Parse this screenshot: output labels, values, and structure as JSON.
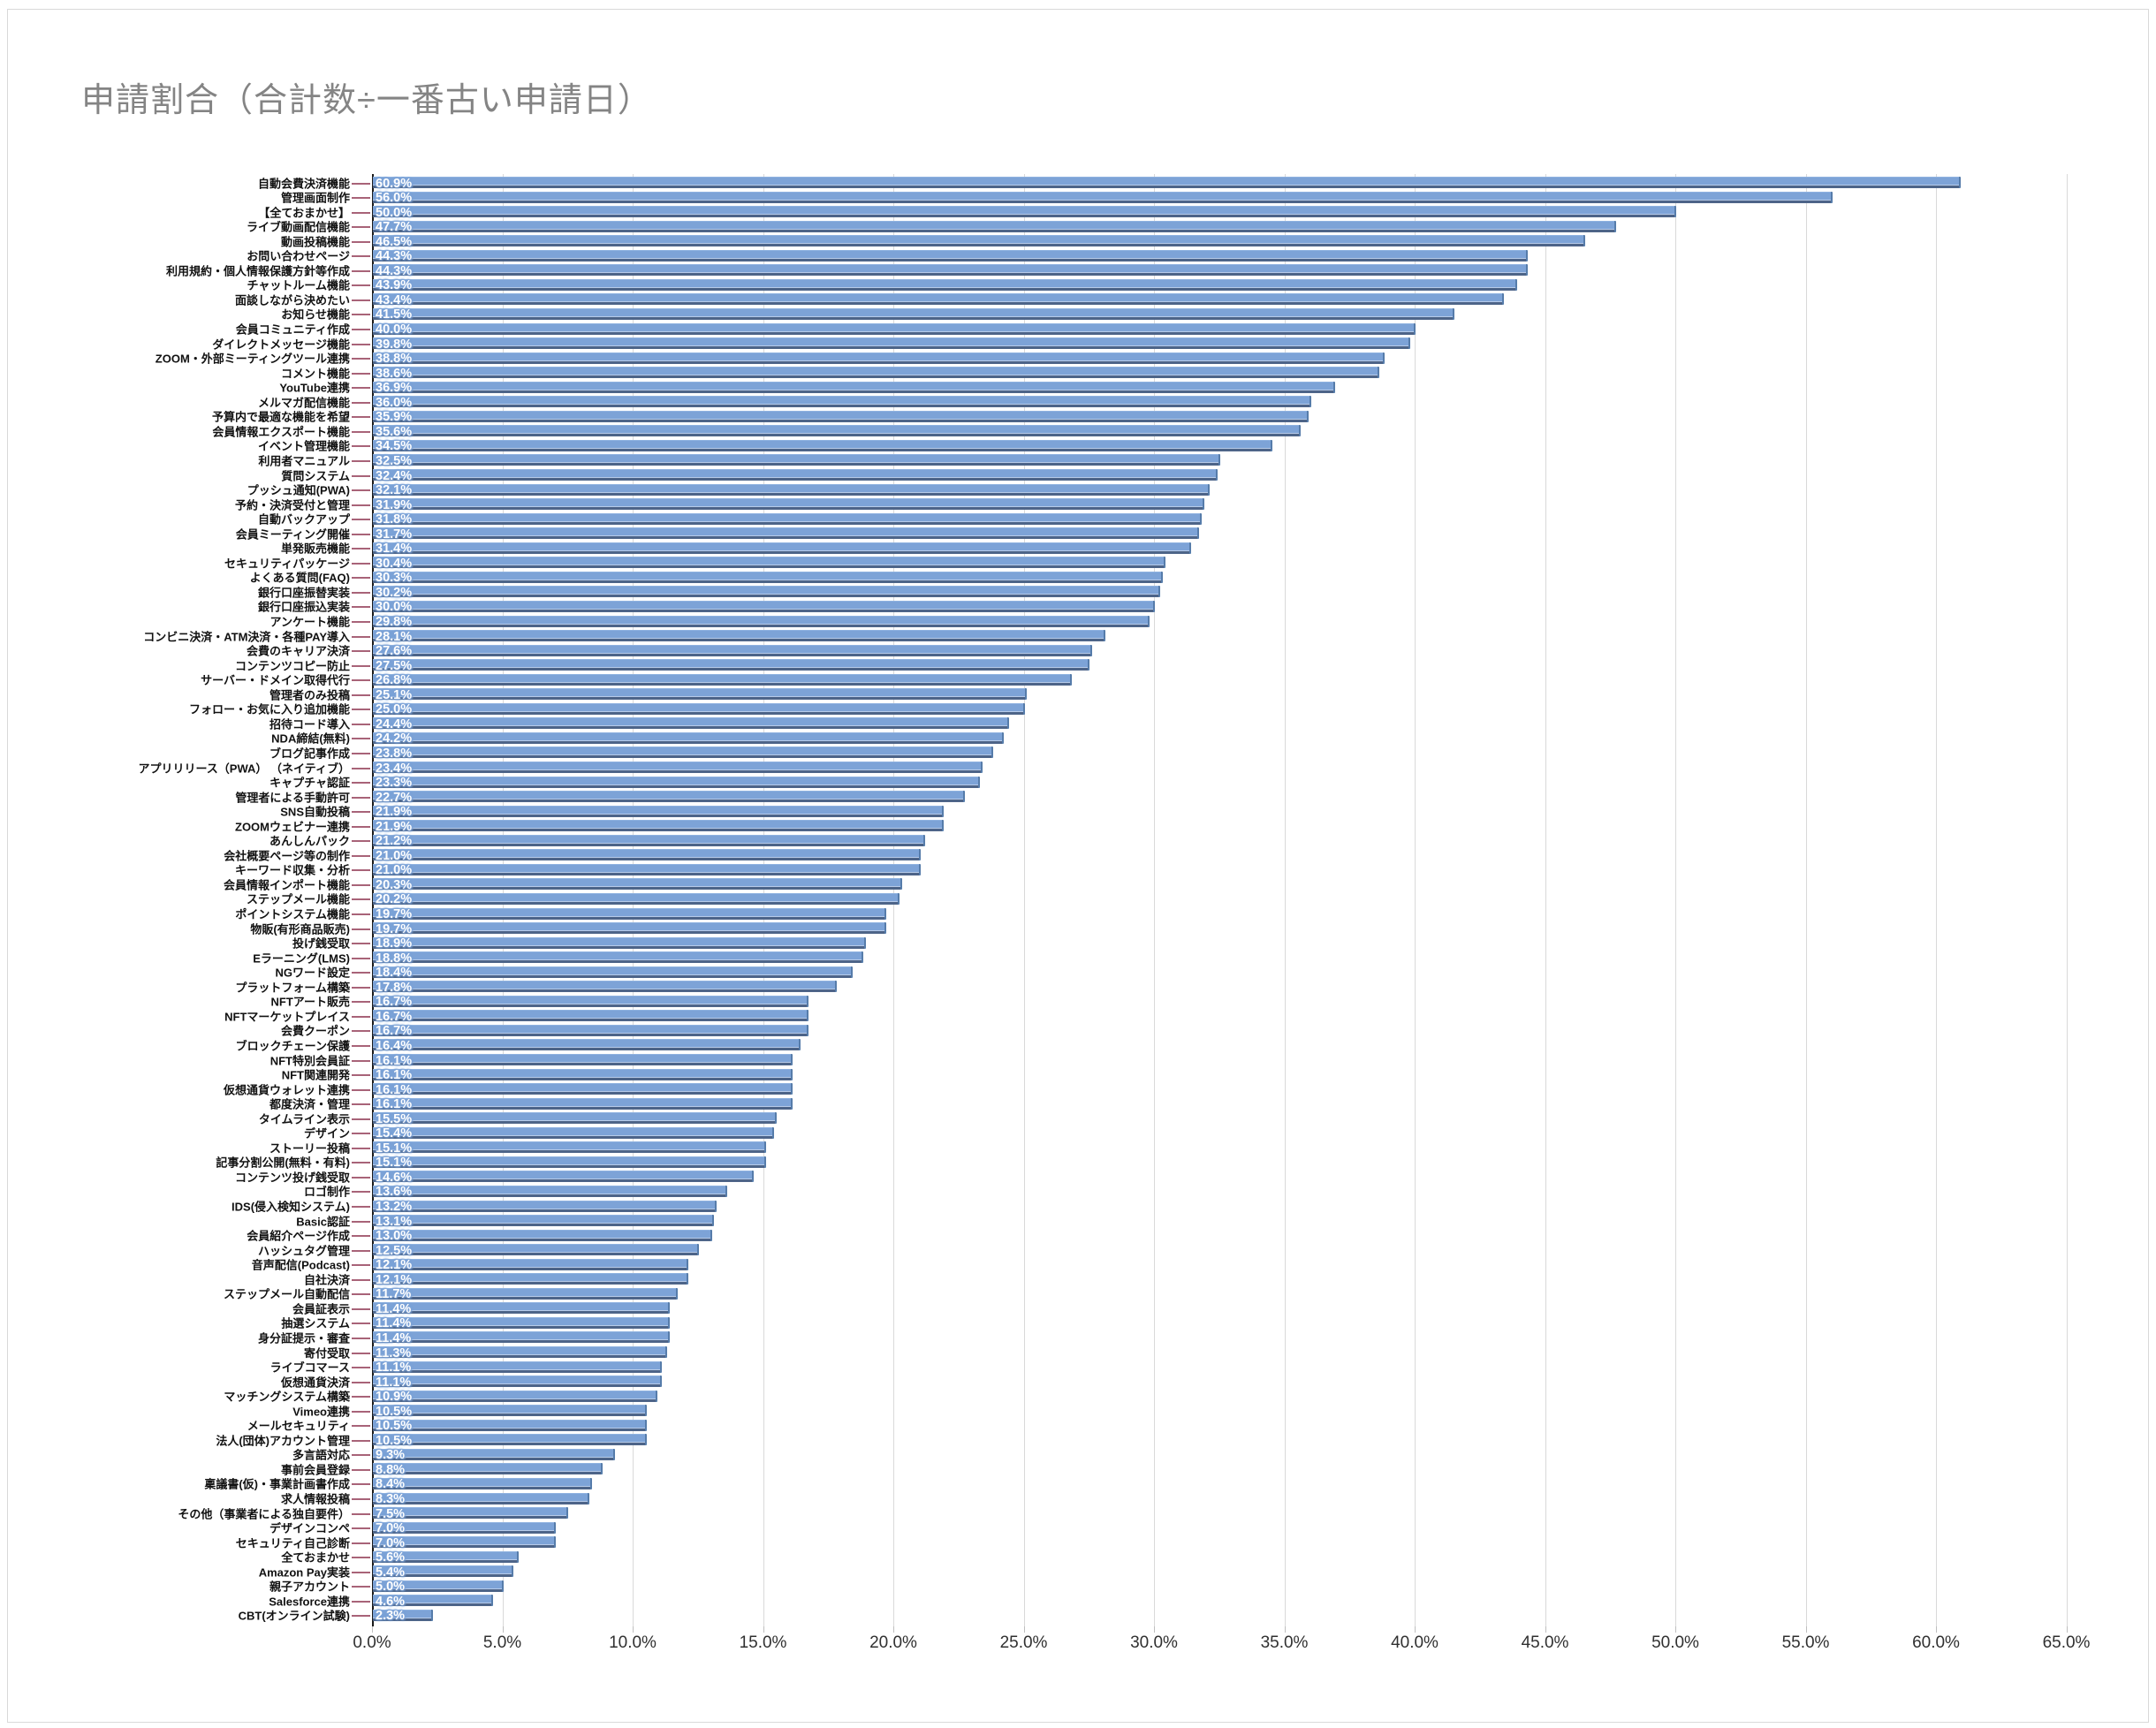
{
  "title": "申請割合（合計数÷一番古い申請日）",
  "accent_colors": {
    "bar_fill": "#7da3d7",
    "bar_shadow": "#4d6488",
    "bar_highlight": "#b7cbe9",
    "category_tick": "#a86378",
    "axis_line": "#1a1a1a",
    "gridline": "#d9d9d9",
    "title_color": "#848484",
    "value_label_color": "#ffffff"
  },
  "chart_data": {
    "type": "bar",
    "orientation": "horizontal",
    "title": "申請割合（合計数÷一番古い申請日）",
    "xlabel": "",
    "ylabel": "",
    "xlim": [
      0,
      65
    ],
    "x_tick_labels": [
      "0.0%",
      "5.0%",
      "10.0%",
      "15.0%",
      "20.0%",
      "25.0%",
      "30.0%",
      "35.0%",
      "40.0%",
      "45.0%",
      "50.0%",
      "55.0%",
      "60.0%",
      "65.0%"
    ],
    "grid": true,
    "value_labels_shown": true,
    "categories": [
      "自動会費決済機能",
      "管理画面制作",
      "【全ておまかせ】",
      "ライブ動画配信機能",
      "動画投稿機能",
      "お問い合わせページ",
      "利用規約・個人情報保護方針等作成",
      "チャットルーム機能",
      "面談しながら決めたい",
      "お知らせ機能",
      "会員コミュニティ作成",
      "ダイレクトメッセージ機能",
      "ZOOM・外部ミーティングツール連携",
      "コメント機能",
      "YouTube連携",
      "メルマガ配信機能",
      "予算内で最適な機能を希望",
      "会員情報エクスポート機能",
      "イベント管理機能",
      "利用者マニュアル",
      "質問システム",
      "プッシュ通知(PWA)",
      "予約・決済受付と管理",
      "自動バックアップ",
      "会員ミーティング開催",
      "単発販売機能",
      "セキュリティパッケージ",
      "よくある質問(FAQ)",
      "銀行口座振替実装",
      "銀行口座振込実装",
      "アンケート機能",
      "コンビニ決済・ATM決済・各種PAY導入",
      "会費のキャリア決済",
      "コンテンツコピー防止",
      "サーバー・ドメイン取得代行",
      "管理者のみ投稿",
      "フォロー・お気に入り追加機能",
      "招待コード導入",
      "NDA締結(無料)",
      "ブログ記事作成",
      "アプリリリース（PWA） （ネイティブ）",
      "キャプチャ認証",
      "管理者による手動許可",
      "SNS自動投稿",
      "ZOOMウェビナー連携",
      "あんしんパック",
      "会社概要ページ等の制作",
      "キーワード収集・分析",
      "会員情報インポート機能",
      "ステップメール機能",
      "ポイントシステム機能",
      "物販(有形商品販売)",
      "投げ銭受取",
      "Eラーニング(LMS)",
      "NGワード設定",
      "プラットフォーム構築",
      "NFTアート販売",
      "NFTマーケットプレイス",
      "会費クーポン",
      "ブロックチェーン保護",
      "NFT特別会員証",
      "NFT関連開発",
      "仮想通貨ウォレット連携",
      "都度決済・管理",
      "タイムライン表示",
      "デザイン",
      "ストーリー投稿",
      "記事分割公開(無料・有料)",
      "コンテンツ投げ銭受取",
      "ロゴ制作",
      "IDS(侵入検知システム)",
      "Basic認証",
      "会員紹介ページ作成",
      "ハッシュタグ管理",
      "音声配信(Podcast)",
      "自社決済",
      "ステップメール自動配信",
      "会員証表示",
      "抽選システム",
      "身分証提示・審査",
      "寄付受取",
      "ライブコマース",
      "仮想通貨決済",
      "マッチングシステム構築",
      "Vimeo連携",
      "メールセキュリティ",
      "法人(団体)アカウント管理",
      "多言語対応",
      "事前会員登録",
      "稟議書(仮)・事業計画書作成",
      "求人情報投稿",
      "その他（事業者による独自要件）",
      "デザインコンペ",
      "セキュリティ自己診断",
      "全ておまかせ",
      "Amazon Pay実装",
      "親子アカウント",
      "Salesforce連携",
      "CBT(オンライン試験)"
    ],
    "values": [
      60.9,
      56.0,
      50.0,
      47.7,
      46.5,
      44.3,
      44.3,
      43.9,
      43.4,
      41.5,
      40.0,
      39.8,
      38.8,
      38.6,
      36.9,
      36.0,
      35.9,
      35.6,
      34.5,
      32.5,
      32.4,
      32.1,
      31.9,
      31.8,
      31.7,
      31.4,
      30.4,
      30.3,
      30.2,
      30.0,
      29.8,
      28.1,
      27.6,
      27.5,
      26.8,
      25.1,
      25.0,
      24.4,
      24.2,
      23.8,
      23.4,
      23.3,
      22.7,
      21.9,
      21.9,
      21.2,
      21.0,
      21.0,
      20.3,
      20.2,
      19.7,
      19.7,
      18.9,
      18.8,
      18.4,
      17.8,
      16.7,
      16.7,
      16.7,
      16.4,
      16.1,
      16.1,
      16.1,
      16.1,
      15.5,
      15.4,
      15.1,
      15.1,
      14.6,
      13.6,
      13.2,
      13.1,
      13.0,
      12.5,
      12.1,
      12.1,
      11.7,
      11.4,
      11.4,
      11.4,
      11.3,
      11.1,
      11.1,
      10.9,
      10.5,
      10.5,
      10.5,
      9.3,
      8.8,
      8.4,
      8.3,
      7.5,
      7.0,
      7.0,
      5.6,
      5.4,
      5.0,
      4.6,
      2.3
    ]
  }
}
